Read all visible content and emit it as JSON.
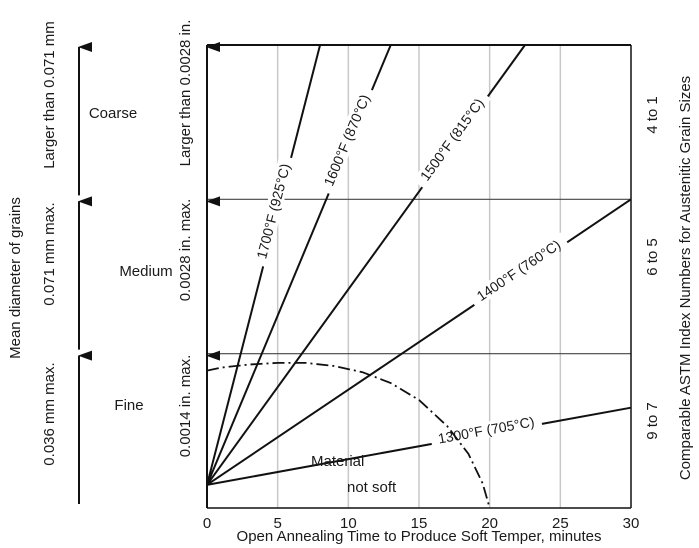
{
  "chart_data": {
    "type": "line",
    "xlabel": "Open Annealing Time to Produce Soft Temper, minutes",
    "xlim": [
      0,
      30
    ],
    "ylim": [
      0,
      3
    ],
    "x_ticks": [
      "0",
      "5",
      "10",
      "15",
      "20",
      "25",
      "30"
    ],
    "grid": "vertical",
    "left_axis_title": "Mean diameter of grains",
    "left_mm_labels": [
      "0.036 mm max.",
      "0.071 mm max.",
      "Larger than 0.071 mm"
    ],
    "grade_labels": [
      "Fine",
      "Medium",
      "Coarse"
    ],
    "left_inch_labels": [
      "0.0014 in. max.",
      "0.0028 in. max.",
      "Larger than 0.0028 in."
    ],
    "right_axis_title": "Comparable ASTM Index Numbers for Austenitic Grain Sizes",
    "right_labels": [
      "9 to 7",
      "6 to 5",
      "4 to 1"
    ],
    "band_boundaries": [
      1.0,
      2.0
    ],
    "series": [
      {
        "name": "1300°F (705°C)",
        "x": [
          0,
          30
        ],
        "y": [
          0.15,
          0.65
        ]
      },
      {
        "name": "1400°F (760°C)",
        "x": [
          0,
          30
        ],
        "y": [
          0.15,
          2.0
        ]
      },
      {
        "name": "1500°F (815°C)",
        "x": [
          0,
          22.5
        ],
        "y": [
          0.15,
          3.0
        ]
      },
      {
        "name": "1600°F (870°C)",
        "x": [
          0,
          13
        ],
        "y": [
          0.15,
          3.0
        ]
      },
      {
        "name": "1700°F (925°C)",
        "x": [
          0,
          8
        ],
        "y": [
          0.15,
          3.0
        ]
      }
    ],
    "soft_boundary": {
      "x": [
        0,
        1,
        3,
        5,
        7,
        9,
        11,
        13,
        15,
        17,
        18.5,
        19.5,
        20
      ],
      "y": [
        0.89,
        0.91,
        0.93,
        0.94,
        0.94,
        0.92,
        0.88,
        0.81,
        0.7,
        0.53,
        0.35,
        0.16,
        0.0
      ]
    },
    "annotation": [
      "Material",
      "not soft"
    ]
  }
}
